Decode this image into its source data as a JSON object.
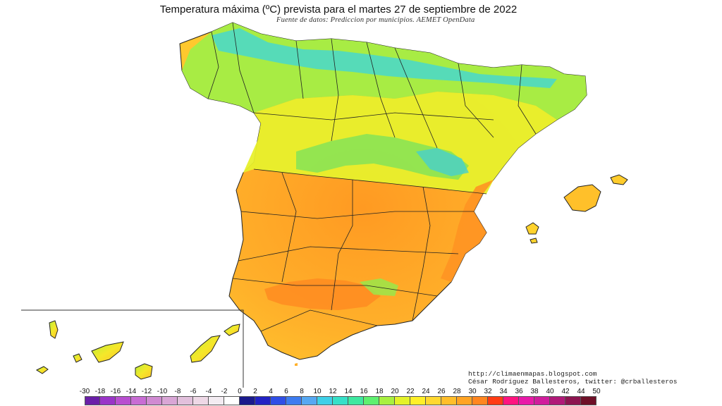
{
  "header": {
    "title": "Temperatura máxima (ºC) prevista para el martes 27 de septiembre de 2022",
    "subtitle": "Fuente de datos: Prediccion por municipios. AEMET OpenData"
  },
  "credits": {
    "url": "http://climaenmapas.blogspot.com",
    "author": "César Rodríguez Ballesteros, twitter: @crballesteros"
  },
  "scale": {
    "ticks": [
      "-30",
      "-18",
      "-16",
      "-14",
      "-12",
      "-10",
      "-8",
      "-6",
      "-4",
      "-2",
      "0",
      "2",
      "4",
      "6",
      "8",
      "10",
      "12",
      "14",
      "16",
      "18",
      "20",
      "22",
      "24",
      "26",
      "28",
      "30",
      "32",
      "34",
      "36",
      "38",
      "40",
      "42",
      "44",
      "50"
    ],
    "colors": [
      "#6a1fa8",
      "#9a34c8",
      "#b84fd0",
      "#c86cd4",
      "#d08ad2",
      "#d9a6d6",
      "#e2c0dc",
      "#eed8e6",
      "#f3ecf2",
      "#ffffff",
      "#1a1a8c",
      "#2222c4",
      "#2f4ee6",
      "#3d7cf0",
      "#56a8f2",
      "#3ed0e8",
      "#36e0c8",
      "#3ee8a0",
      "#5ef070",
      "#a8f040",
      "#e4f22a",
      "#fff028",
      "#ffd830",
      "#ffbe2a",
      "#ffa424",
      "#ff8620",
      "#ff3c14",
      "#ff1480",
      "#e81aa8",
      "#d01c9c",
      "#b01878",
      "#8c1450",
      "#6e1028"
    ]
  },
  "map": {
    "regions": [
      "peninsula",
      "mallorca",
      "menorca",
      "ibiza",
      "formentera",
      "canarias-inset"
    ],
    "colors": {
      "hot": "#ffa424",
      "warm": "#ffd830",
      "mild": "#f4f02a",
      "cool": "#a8f040",
      "cold": "#3ed0e8",
      "coldest": "#36a8d8",
      "border": "#222222"
    }
  }
}
